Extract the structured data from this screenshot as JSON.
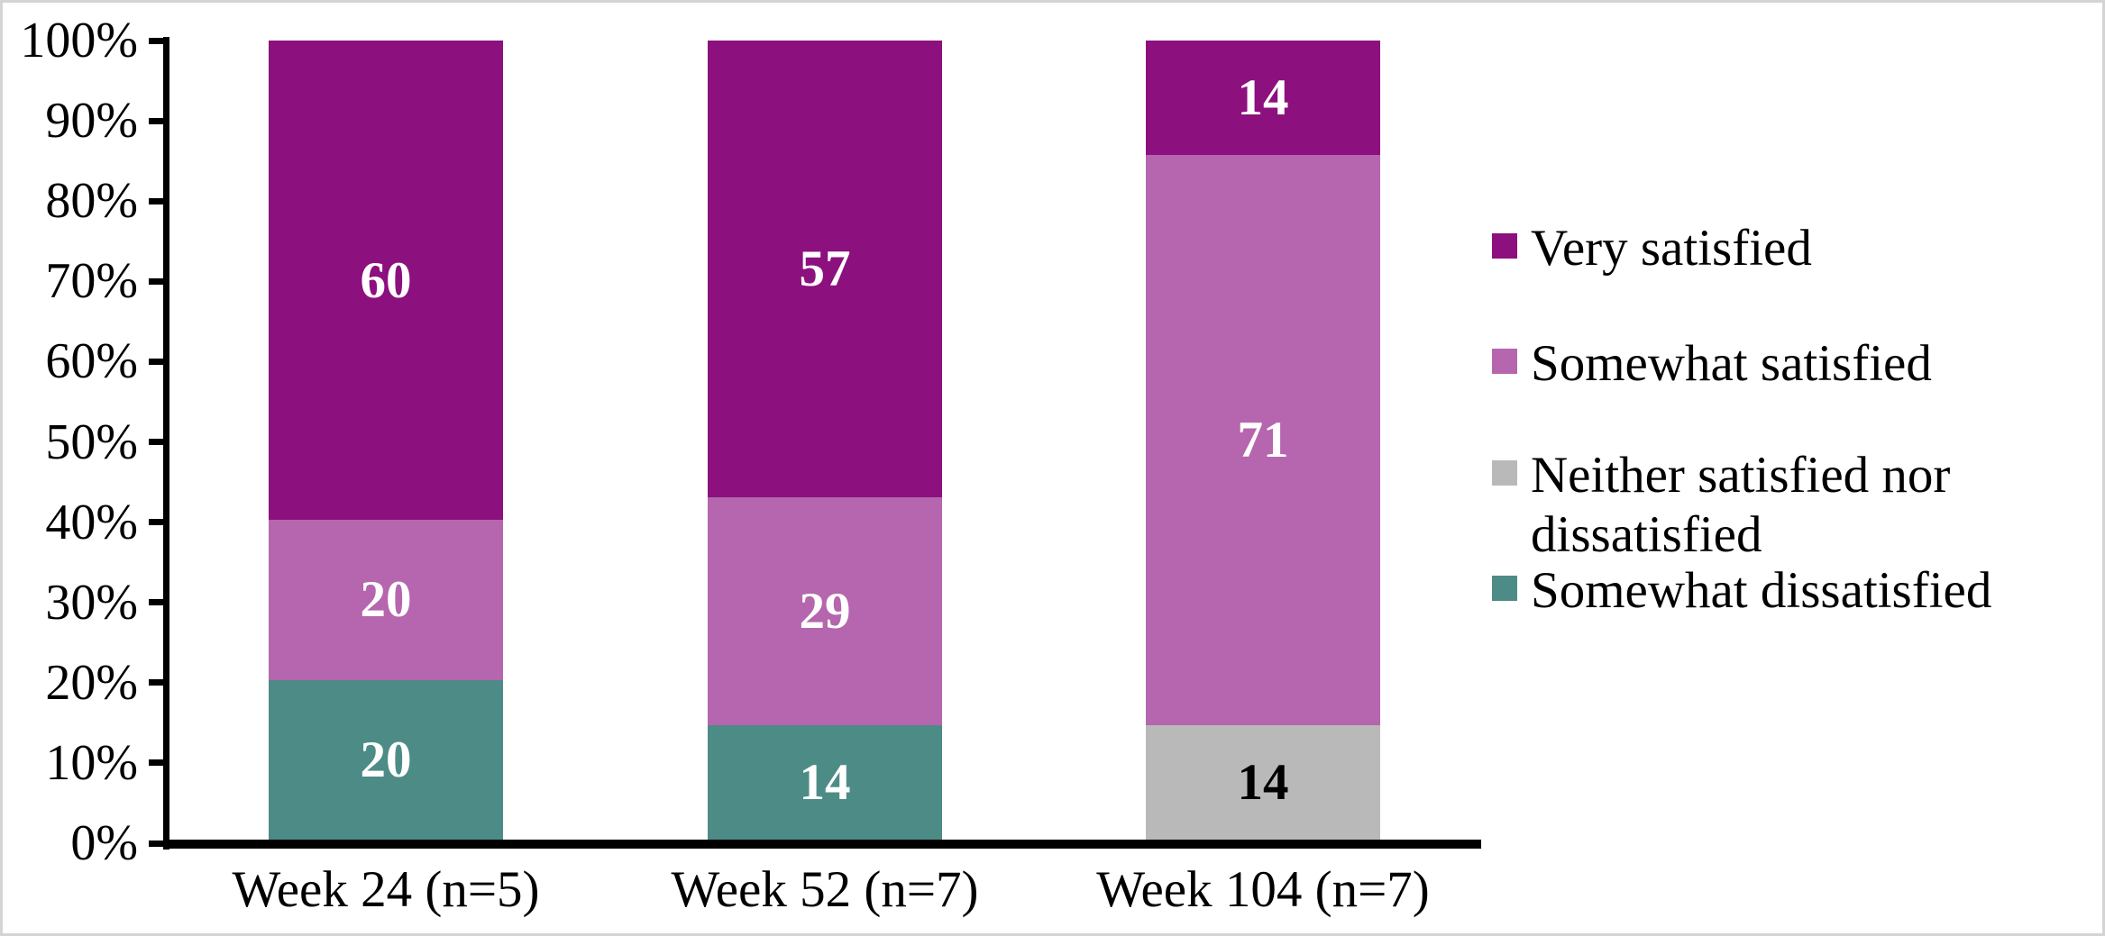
{
  "chart_data": {
    "type": "bar",
    "subtype": "stacked_100_percent",
    "title": "",
    "xlabel": "",
    "ylabel": "",
    "grid": false,
    "categories": [
      "Week 24 (n=5)",
      "Week 52 (n=7)",
      "Week 104 (n=7)"
    ],
    "series": [
      {
        "name": "Somewhat dissatisfied",
        "color": "#4D8C86",
        "label_color": "#FFFFFF",
        "values": [
          20,
          14,
          null
        ],
        "heights_pct": [
          20,
          14.29,
          0
        ]
      },
      {
        "name": "Neither satisfied nor dissatisfied",
        "color": "#B9B9B9",
        "label_color": "#000000",
        "values": [
          null,
          null,
          14
        ],
        "heights_pct": [
          0,
          0,
          14.29
        ]
      },
      {
        "name": "Somewhat satisfied",
        "color": "#B566AE",
        "label_color": "#FFFFFF",
        "values": [
          20,
          29,
          71
        ],
        "heights_pct": [
          20,
          28.57,
          71.43
        ]
      },
      {
        "name": "Very satisfied",
        "color": "#8C107E",
        "label_color": "#FFFFFF",
        "values": [
          60,
          57,
          14
        ],
        "heights_pct": [
          60,
          57.14,
          14.29
        ]
      }
    ],
    "y_axis": {
      "min": 0,
      "max": 100,
      "tick_step": 10,
      "tick_labels": [
        "0%",
        "10%",
        "20%",
        "30%",
        "40%",
        "50%",
        "60%",
        "70%",
        "80%",
        "90%",
        "100%"
      ]
    },
    "legend": {
      "position": "right",
      "items": [
        "Very satisfied",
        "Somewhat satisfied",
        "Neither satisfied nor dissatisfied",
        "Somewhat dissatisfied"
      ]
    }
  },
  "colors": {
    "axis": "#000000",
    "text": "#000000",
    "background": "#FFFFFF",
    "frame_border": "#D4D4D4"
  }
}
